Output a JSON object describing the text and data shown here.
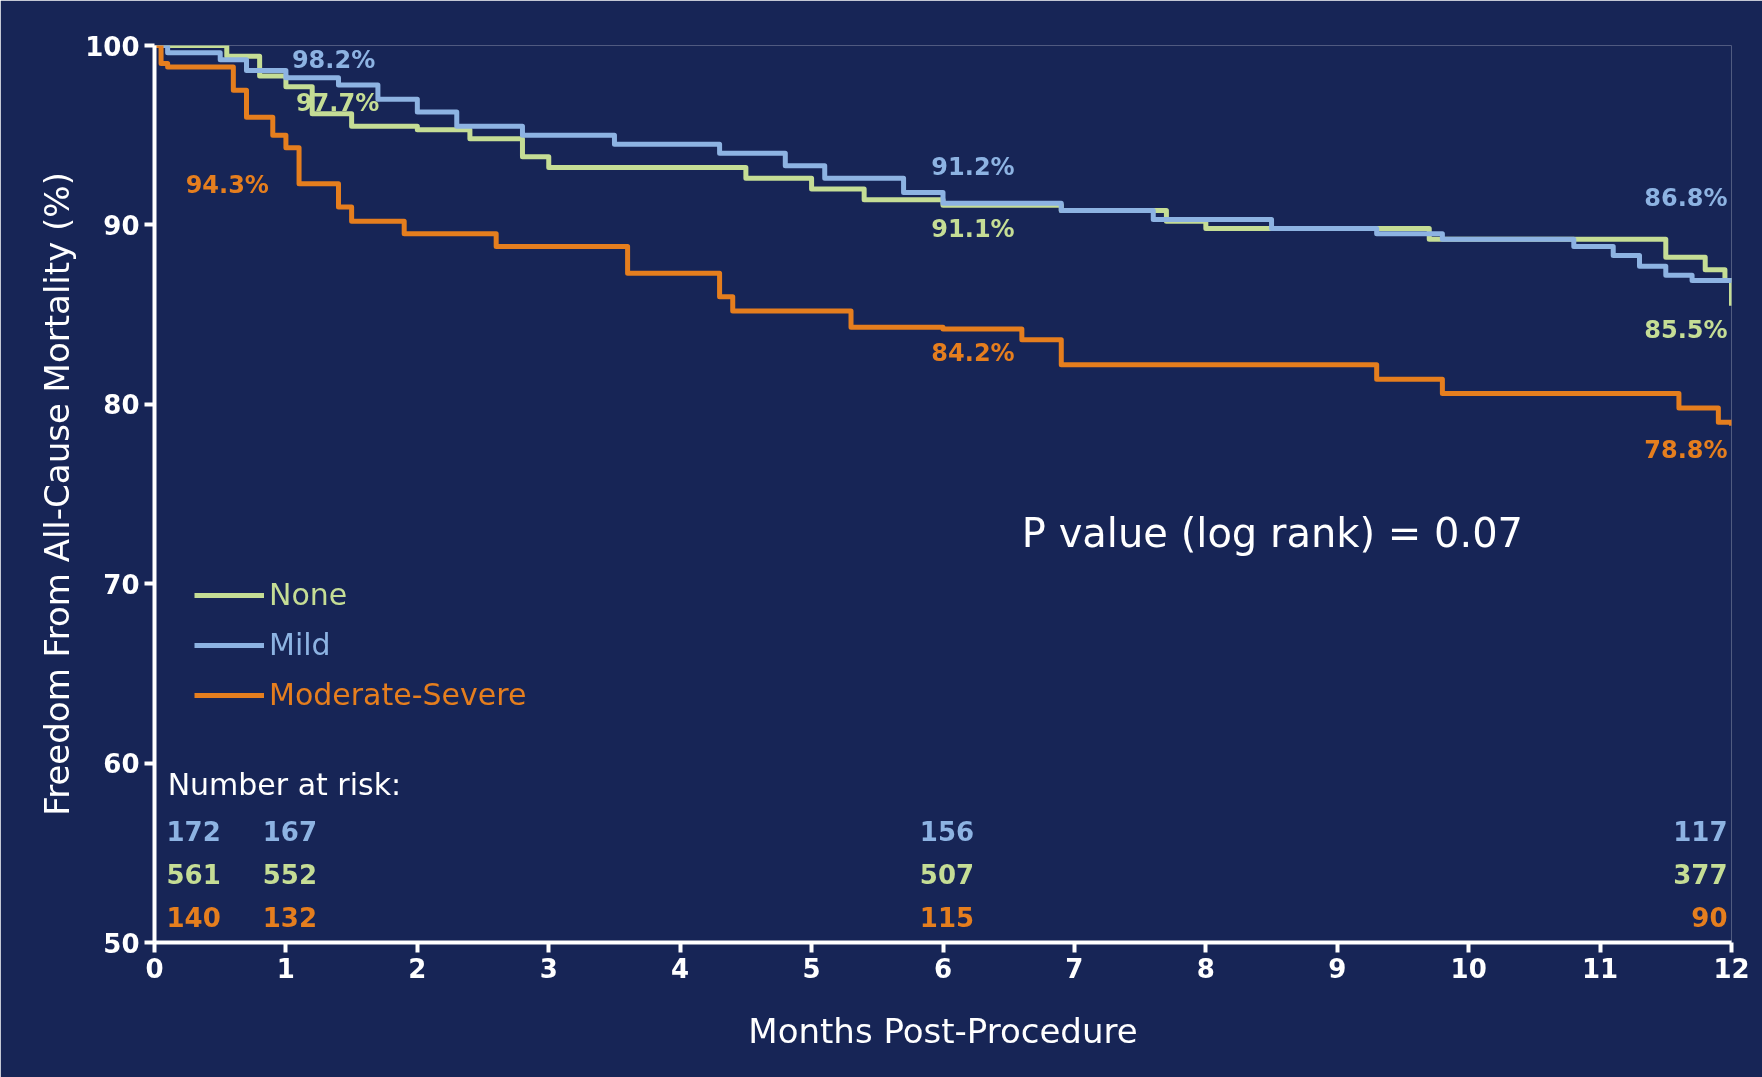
{
  "chart_data": {
    "type": "step",
    "xlabel": "Months Post-Procedure",
    "ylabel": "Freedom From All-Cause Mortality (%)",
    "xlim": [
      0,
      12
    ],
    "ylim": [
      50,
      100
    ],
    "xticks": [
      0,
      1,
      2,
      3,
      4,
      5,
      6,
      7,
      8,
      9,
      10,
      11,
      12
    ],
    "yticks": [
      50,
      60,
      70,
      80,
      90,
      100
    ],
    "grid": false,
    "legend": "bottom left",
    "line_style": "solid",
    "marker": "none",
    "series": [
      {
        "name": "None",
        "color": "#c5dd95",
        "x": [
          0,
          0.55,
          0.8,
          1,
          1.2,
          1.5,
          2.0,
          2.4,
          2.8,
          3.0,
          4.5,
          5.0,
          5.4,
          6,
          6.9,
          7.7,
          8.0,
          9.7,
          11.5,
          11.8,
          11.95,
          12
        ],
        "values": [
          100,
          99.4,
          98.3,
          97.7,
          96.2,
          95.5,
          95.3,
          94.8,
          93.8,
          93.2,
          92.6,
          92.0,
          91.4,
          91.1,
          90.8,
          90.2,
          89.8,
          89.2,
          88.2,
          87.5,
          86.9,
          85.5
        ],
        "value_labels": [
          null,
          null,
          null,
          "97.7%",
          null,
          null,
          null,
          null,
          null,
          null,
          null,
          null,
          null,
          "91.1%",
          null,
          null,
          null,
          null,
          null,
          null,
          null,
          "85.5%"
        ]
      },
      {
        "name": "Mild",
        "color": "#8db3e2",
        "x": [
          0,
          0.1,
          0.5,
          0.7,
          1,
          1.4,
          1.7,
          2.0,
          2.3,
          2.8,
          3.5,
          4.3,
          4.8,
          5.1,
          5.7,
          6,
          6.9,
          7.6,
          8.5,
          9.3,
          9.8,
          10.8,
          11.1,
          11.3,
          11.5,
          11.7,
          12
        ],
        "values": [
          100,
          99.6,
          99.2,
          98.6,
          98.2,
          97.8,
          97.0,
          96.3,
          95.5,
          95.0,
          94.5,
          94.0,
          93.3,
          92.6,
          91.8,
          91.2,
          90.8,
          90.3,
          89.8,
          89.5,
          89.2,
          88.8,
          88.3,
          87.7,
          87.2,
          86.9,
          86.8
        ],
        "value_labels": [
          null,
          null,
          null,
          null,
          "98.2%",
          null,
          null,
          null,
          null,
          null,
          null,
          null,
          null,
          null,
          null,
          "91.2%",
          null,
          null,
          null,
          null,
          null,
          null,
          null,
          null,
          null,
          null,
          "86.8%"
        ]
      },
      {
        "name": "Moderate-Severe",
        "color": "#e57e1e",
        "x": [
          0,
          0.05,
          0.1,
          0.6,
          0.7,
          0.9,
          1,
          1.1,
          1.4,
          1.5,
          1.9,
          2.6,
          3.6,
          4.3,
          4.4,
          5.3,
          6,
          6.6,
          6.9,
          9.3,
          9.8,
          11.6,
          11.9,
          12
        ],
        "values": [
          100,
          99.0,
          98.8,
          97.5,
          96.0,
          95.0,
          94.3,
          92.3,
          91.0,
          90.2,
          89.5,
          88.8,
          87.3,
          86.0,
          85.2,
          84.3,
          84.2,
          83.6,
          82.2,
          81.4,
          80.6,
          79.8,
          79.0,
          78.8
        ],
        "value_labels": [
          null,
          null,
          null,
          null,
          null,
          null,
          "94.3%",
          null,
          null,
          null,
          null,
          null,
          null,
          null,
          null,
          null,
          "84.2%",
          null,
          null,
          null,
          null,
          null,
          null,
          "78.8%"
        ]
      }
    ],
    "annotations": [
      "P value (log rank) = 0.07",
      "Number at risk:",
      "172",
      "167",
      "156",
      "117",
      "561",
      "552",
      "507",
      "377",
      "140",
      "132",
      "115",
      "90"
    ]
  }
}
